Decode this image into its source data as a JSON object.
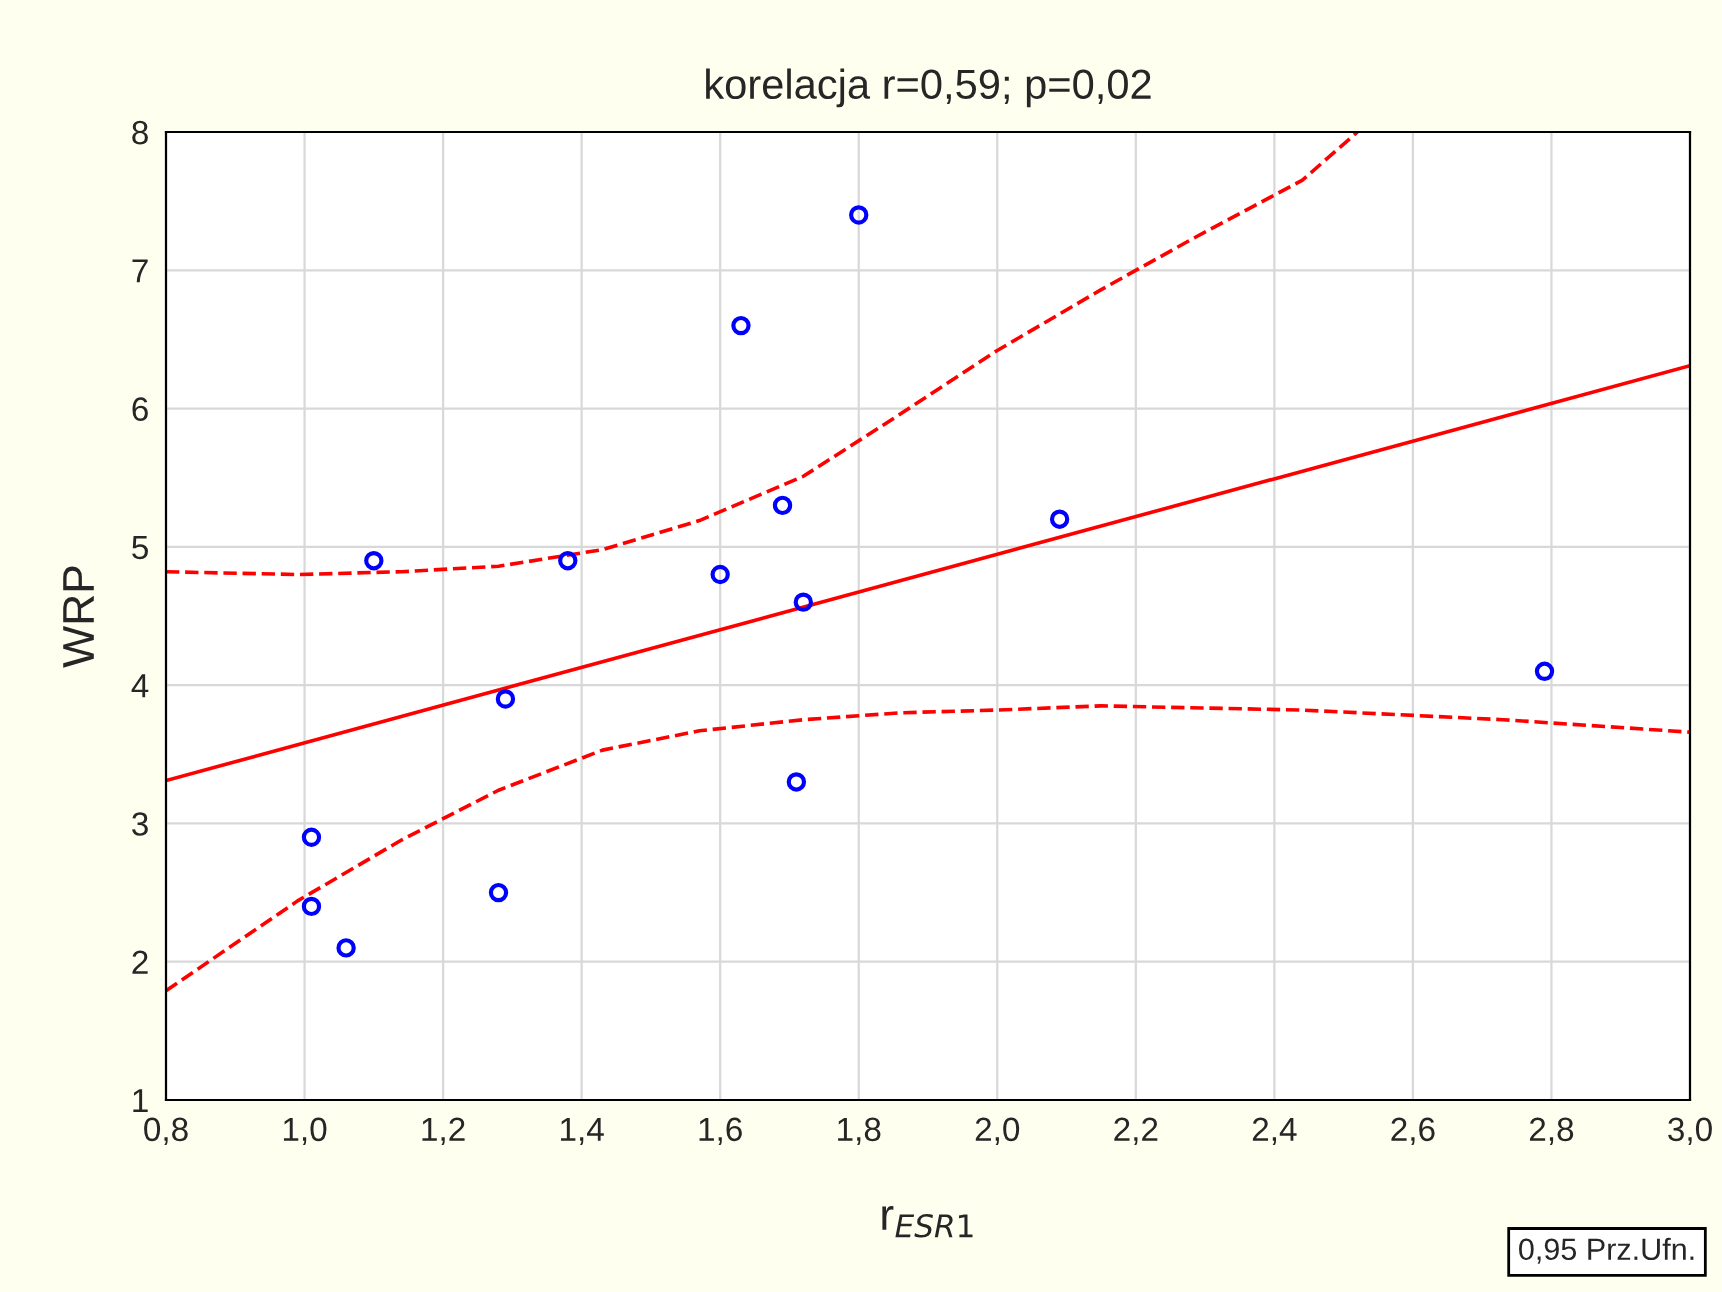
{
  "chart_data": {
    "type": "scatter",
    "title": "korelacja r=0,59; p=0,02",
    "xlabel": "r$_{ESR1}$",
    "ylabel": "WRP",
    "xlim": [
      0.8,
      3.0
    ],
    "xticks": [
      {
        "value": 0.8,
        "label": "0,8"
      },
      {
        "value": 1.0,
        "label": "1,0"
      },
      {
        "value": 1.2,
        "label": "1,2"
      },
      {
        "value": 1.4,
        "label": "1,4"
      },
      {
        "value": 1.6,
        "label": "1,6"
      },
      {
        "value": 1.8,
        "label": "1,8"
      },
      {
        "value": 2.0,
        "label": "2,0"
      },
      {
        "value": 2.2,
        "label": "2,2"
      },
      {
        "value": 2.4,
        "label": "2,4"
      },
      {
        "value": 2.6,
        "label": "2,6"
      },
      {
        "value": 2.8,
        "label": "2,8"
      },
      {
        "value": 3.0,
        "label": "3,0"
      }
    ],
    "ylim": [
      1,
      8
    ],
    "yticks": [
      1,
      2,
      3,
      4,
      5,
      6,
      7,
      8
    ],
    "grid": true,
    "annotations": [
      "0,95 Prz.Ufn."
    ],
    "series": [
      {
        "marker": "circle",
        "color": "#0000ff",
        "x": [
          1.01,
          1.01,
          1.06,
          1.1,
          1.28,
          1.29,
          1.38,
          1.6,
          1.63,
          1.69,
          1.72,
          1.71,
          1.8,
          2.09,
          2.79
        ],
        "values": [
          2.9,
          2.4,
          2.1,
          4.9,
          2.5,
          3.9,
          4.9,
          4.8,
          6.6,
          5.3,
          4.6,
          3.3,
          7.4,
          5.2,
          4.1
        ]
      },
      {
        "type": "line",
        "color": "#ff0000",
        "line_style": "solid",
        "x": [
          0.8,
          3.0
        ],
        "values": [
          3.31,
          6.31
        ]
      },
      {
        "type": "line",
        "color": "#ff0000",
        "line_style": "dashed",
        "x": [
          0.8,
          0.99,
          1.14,
          1.28,
          1.43,
          1.57,
          1.72,
          1.86,
          2.0,
          2.15,
          2.29,
          2.44,
          2.52
        ],
        "values": [
          4.82,
          4.8,
          4.82,
          4.86,
          4.98,
          5.19,
          5.51,
          5.96,
          6.42,
          6.86,
          7.25,
          7.65,
          8.0
        ]
      },
      {
        "type": "line",
        "color": "#ff0000",
        "line_style": "dashed",
        "x": [
          0.8,
          0.99,
          1.14,
          1.28,
          1.43,
          1.57,
          1.72,
          1.86,
          2.0,
          2.15,
          2.44,
          2.73,
          3.0
        ],
        "values": [
          1.79,
          2.44,
          2.88,
          3.24,
          3.53,
          3.67,
          3.75,
          3.8,
          3.82,
          3.85,
          3.82,
          3.75,
          3.66
        ]
      }
    ]
  }
}
